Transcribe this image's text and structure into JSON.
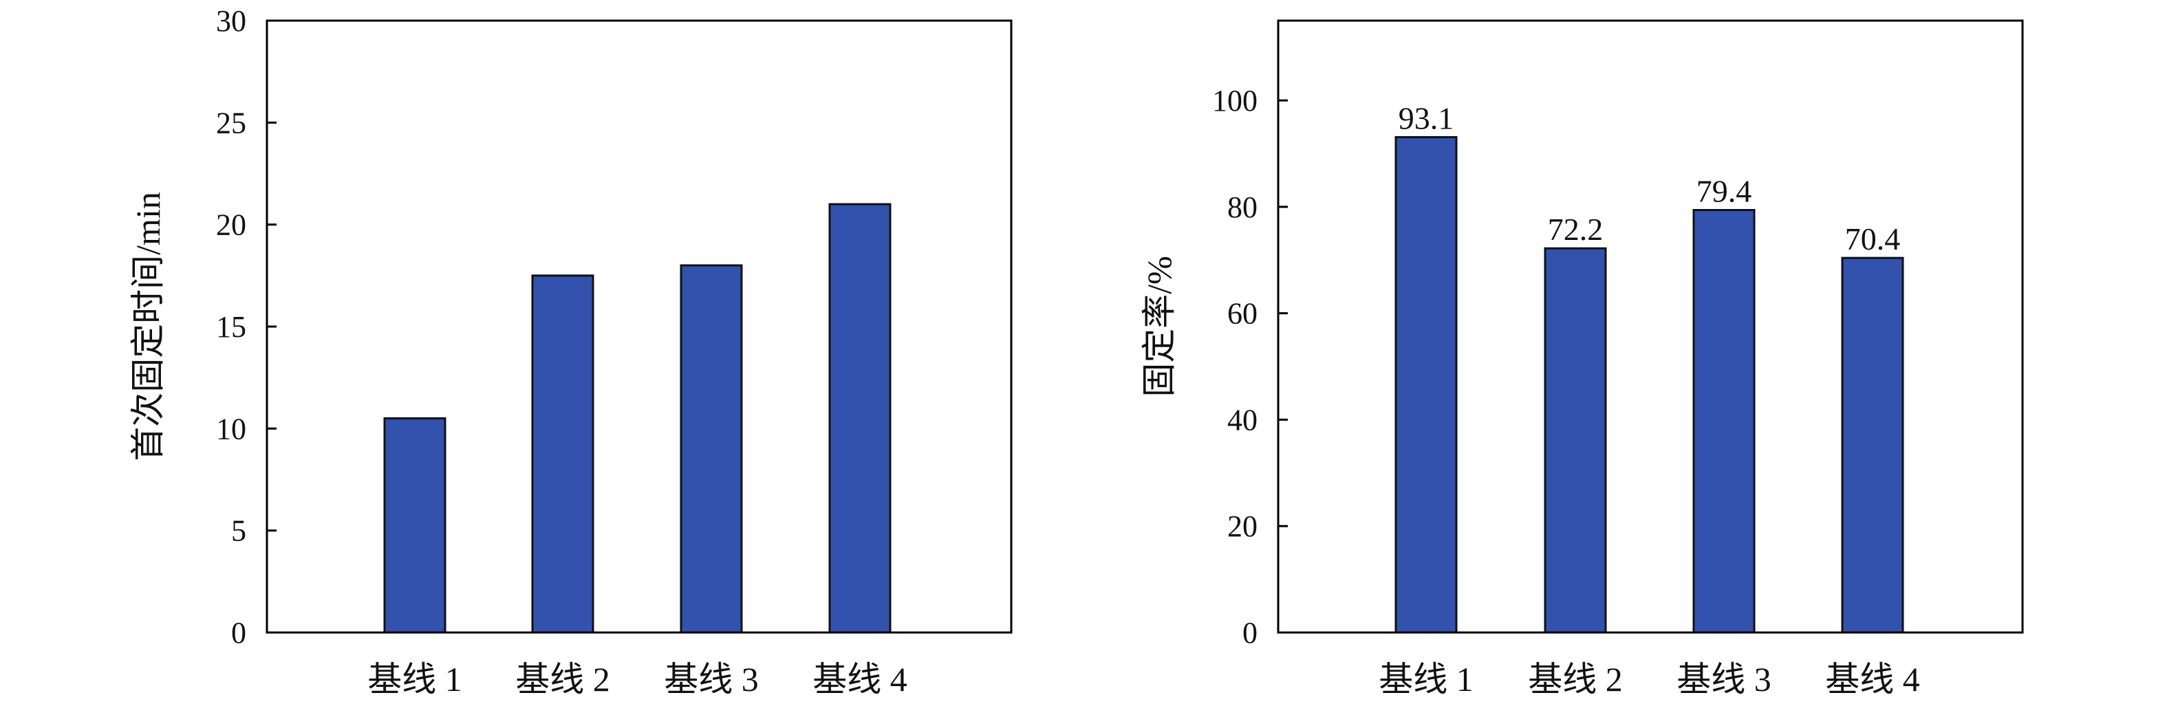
{
  "chart_data": [
    {
      "type": "bar",
      "categories": [
        "基线 1",
        "基线 2",
        "基线 3",
        "基线 4"
      ],
      "values": [
        10.5,
        17.5,
        18,
        21
      ],
      "ylabel": "首次固定时间/min",
      "xlabel": "",
      "ylim": [
        0,
        30
      ],
      "yticks": [
        0,
        5,
        10,
        15,
        20,
        25,
        30
      ],
      "data_labels": [],
      "bar_color": "#3352ad",
      "grid": false
    },
    {
      "type": "bar",
      "categories": [
        "基线 1",
        "基线 2",
        "基线 3",
        "基线 4"
      ],
      "values": [
        93.1,
        72.2,
        79.4,
        70.4
      ],
      "ylabel": "固定率/%",
      "xlabel": "",
      "ylim": [
        0,
        115
      ],
      "yticks": [
        0,
        20,
        40,
        60,
        80,
        100
      ],
      "data_labels": [
        "93.1",
        "72.2",
        "79.4",
        "70.4"
      ],
      "bar_color": "#3352ad",
      "grid": false
    }
  ]
}
